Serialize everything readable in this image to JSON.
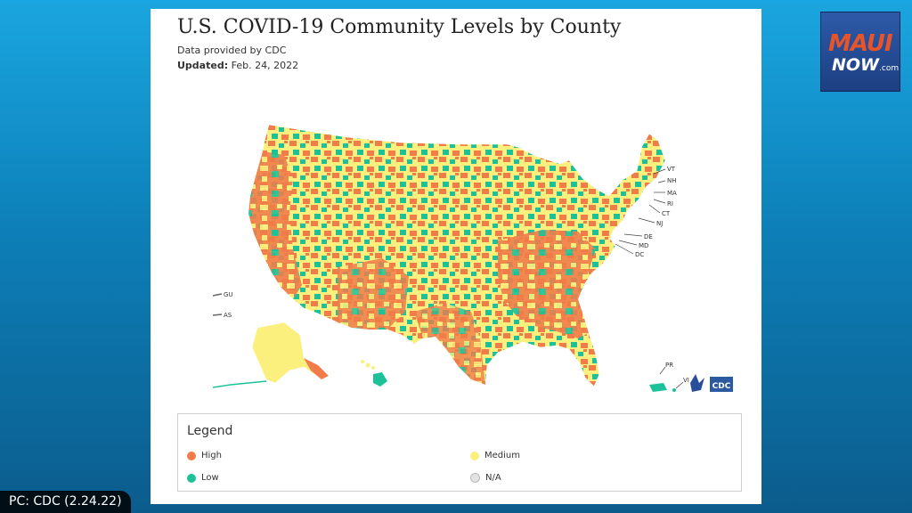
{
  "card": {
    "title": "U.S. COVID-19 Community Levels by County",
    "source": "Data provided by CDC",
    "updated_label": "Updated:",
    "updated_date": "Feb. 24, 2022"
  },
  "map": {
    "territory_labels": {
      "gu": "GU",
      "as": "AS",
      "pr": "PR",
      "vi": "VI",
      "vt": "VT",
      "nh": "NH",
      "ma": "MA",
      "ri": "RI",
      "ct": "CT",
      "nj": "NJ",
      "de": "DE",
      "md": "MD",
      "dc": "DC"
    },
    "cdc_badge": "CDC"
  },
  "legend": {
    "title": "Legend",
    "items": [
      {
        "label": "High",
        "color": "#f07c4a"
      },
      {
        "label": "Medium",
        "color": "#fbf07e"
      },
      {
        "label": "Low",
        "color": "#1cc19a"
      },
      {
        "label": "N/A",
        "color": "#e3e3e3"
      }
    ]
  },
  "logo": {
    "word1": "MAUI",
    "word2": "NOW",
    "suffix": ".com"
  },
  "credit": "PC: CDC (2.24.22)"
}
